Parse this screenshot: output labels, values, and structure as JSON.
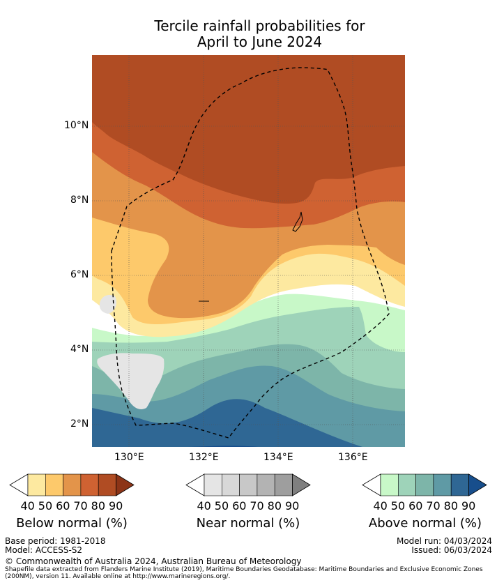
{
  "title_line1": "Tercile rainfall probabilities for",
  "title_line2": "April to June 2024",
  "map": {
    "lat_labels": [
      "10°N",
      "8°N",
      "6°N",
      "4°N",
      "2°N"
    ],
    "lon_labels": [
      "130°E",
      "132°E",
      "134°E",
      "136°E"
    ],
    "region_boundary": "Maritime boundary (EEZ, dashed)"
  },
  "legends": [
    {
      "id": "below",
      "title": "Below normal (%)",
      "ticks": [
        "40",
        "50",
        "60",
        "70",
        "80",
        "90"
      ],
      "colors": [
        "#ffffff",
        "#fde9a0",
        "#fdc96b",
        "#e3944a",
        "#cf6232",
        "#b04c23",
        "#8c3417"
      ]
    },
    {
      "id": "near",
      "title": "Near normal (%)",
      "ticks": [
        "40",
        "50",
        "60",
        "70",
        "80",
        "90"
      ],
      "colors": [
        "#ffffff",
        "#e5e5e5",
        "#d8d8d8",
        "#c8c8c8",
        "#b3b3b3",
        "#9e9e9e",
        "#7f7f7f"
      ]
    },
    {
      "id": "above",
      "title": "Above normal (%)",
      "ticks": [
        "40",
        "50",
        "60",
        "70",
        "80",
        "90"
      ],
      "colors": [
        "#ffffff",
        "#c8f8c8",
        "#9ed3b9",
        "#7db5a9",
        "#5f9aa5",
        "#2f6794",
        "#174e8c"
      ]
    }
  ],
  "footer": {
    "base_period": "Base period: 1981-2018",
    "model": "Model: ACCESS-S2",
    "model_run": "Model run: 04/03/2024",
    "issued": "Issued: 06/03/2024",
    "copyright": "© Commonwealth of Australia 2024, Australian Bureau of Meteorology",
    "shapefile_line1": "Shapefile data extracted from Flanders Marine Institute (2019), Maritime Boundaries Geodatabase: Maritime Boundaries and Exclusive Economic Zones",
    "shapefile_line2": "(200NM), version 11. Available online at http://www.marineregions.org/."
  }
}
